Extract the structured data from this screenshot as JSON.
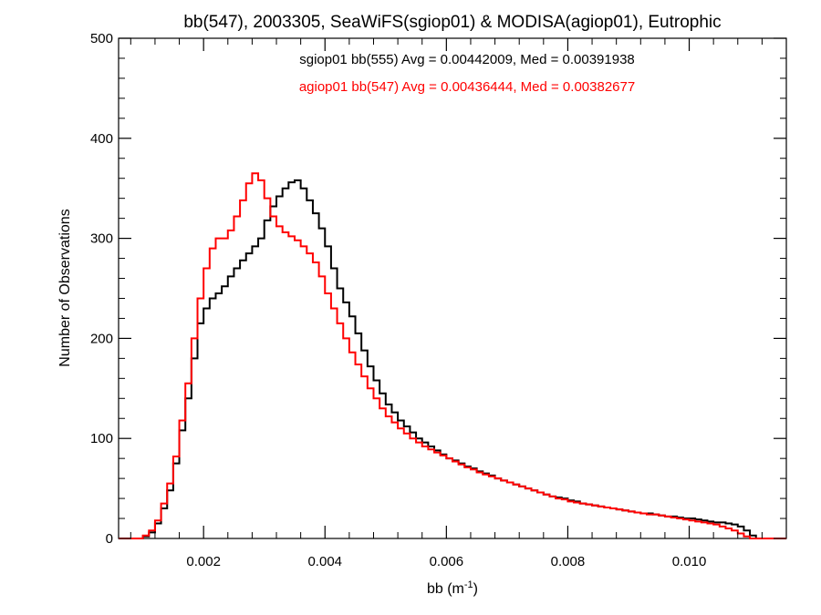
{
  "chart_data": {
    "type": "line",
    "title": "bb(547), 2003305, SeaWiFS(sgiop01) & MODISA(agiop01), Eutrophic",
    "xlabel": "bb (m",
    "xlabel_sup": "-1",
    "xlabel_close": ")",
    "ylabel": "Number of Observations",
    "xlim": [
      0.0006,
      0.0116
    ],
    "ylim": [
      0,
      500
    ],
    "x_ticks": [
      0.002,
      0.004,
      0.006,
      0.008,
      0.01
    ],
    "x_tick_labels": [
      "0.002",
      "0.004",
      "0.006",
      "0.008",
      "0.010"
    ],
    "y_ticks": [
      0,
      100,
      200,
      300,
      400,
      500
    ],
    "y_tick_labels": [
      "0",
      "100",
      "200",
      "300",
      "400",
      "500"
    ],
    "grid": false,
    "step_style": "histogram",
    "annotations": [
      {
        "text": "sgiop01 bb(555) Avg = 0.00442009, Med = 0.00391938",
        "color": "#000000"
      },
      {
        "text": "agiop01 bb(547) Avg = 0.00436444, Med = 0.00382677",
        "color": "#ff0000"
      }
    ],
    "series": [
      {
        "color": "#000000",
        "points": [
          [
            0.0006,
            0
          ],
          [
            0.0009,
            0
          ],
          [
            0.001,
            2
          ],
          [
            0.0011,
            6
          ],
          [
            0.0012,
            15
          ],
          [
            0.0013,
            30
          ],
          [
            0.0014,
            48
          ],
          [
            0.0015,
            75
          ],
          [
            0.0016,
            108
          ],
          [
            0.0017,
            140
          ],
          [
            0.0018,
            180
          ],
          [
            0.0019,
            215
          ],
          [
            0.002,
            230
          ],
          [
            0.0021,
            240
          ],
          [
            0.0022,
            245
          ],
          [
            0.0023,
            252
          ],
          [
            0.0024,
            262
          ],
          [
            0.0025,
            270
          ],
          [
            0.0026,
            278
          ],
          [
            0.0027,
            285
          ],
          [
            0.0028,
            292
          ],
          [
            0.0029,
            300
          ],
          [
            0.003,
            318
          ],
          [
            0.0031,
            332
          ],
          [
            0.0032,
            342
          ],
          [
            0.0033,
            350
          ],
          [
            0.0034,
            356
          ],
          [
            0.0035,
            358
          ],
          [
            0.0036,
            350
          ],
          [
            0.0037,
            338
          ],
          [
            0.0038,
            325
          ],
          [
            0.0039,
            310
          ],
          [
            0.004,
            292
          ],
          [
            0.0041,
            270
          ],
          [
            0.0042,
            250
          ],
          [
            0.0043,
            236
          ],
          [
            0.0044,
            222
          ],
          [
            0.0045,
            205
          ],
          [
            0.0046,
            188
          ],
          [
            0.0047,
            172
          ],
          [
            0.0048,
            158
          ],
          [
            0.0049,
            145
          ],
          [
            0.005,
            134
          ],
          [
            0.0051,
            126
          ],
          [
            0.0052,
            118
          ],
          [
            0.0053,
            112
          ],
          [
            0.0054,
            106
          ],
          [
            0.0055,
            100
          ],
          [
            0.0056,
            96
          ],
          [
            0.0057,
            92
          ],
          [
            0.0058,
            88
          ],
          [
            0.0059,
            84
          ],
          [
            0.006,
            80
          ],
          [
            0.0061,
            78
          ],
          [
            0.0062,
            75
          ],
          [
            0.0063,
            72
          ],
          [
            0.0064,
            70
          ],
          [
            0.0065,
            67
          ],
          [
            0.0066,
            65
          ],
          [
            0.0067,
            63
          ],
          [
            0.0068,
            60
          ],
          [
            0.0069,
            58
          ],
          [
            0.007,
            56
          ],
          [
            0.0071,
            54
          ],
          [
            0.0072,
            52
          ],
          [
            0.0073,
            50
          ],
          [
            0.0074,
            48
          ],
          [
            0.0075,
            46
          ],
          [
            0.0076,
            44
          ],
          [
            0.0077,
            42
          ],
          [
            0.0078,
            41
          ],
          [
            0.0079,
            40
          ],
          [
            0.008,
            38
          ],
          [
            0.0081,
            37
          ],
          [
            0.0082,
            35
          ],
          [
            0.0083,
            34
          ],
          [
            0.0084,
            33
          ],
          [
            0.0085,
            32
          ],
          [
            0.0086,
            31
          ],
          [
            0.0087,
            30
          ],
          [
            0.0088,
            29
          ],
          [
            0.0089,
            28
          ],
          [
            0.009,
            27
          ],
          [
            0.0091,
            26
          ],
          [
            0.0092,
            25
          ],
          [
            0.0093,
            25
          ],
          [
            0.0094,
            24
          ],
          [
            0.0095,
            23
          ],
          [
            0.0096,
            22
          ],
          [
            0.0097,
            22
          ],
          [
            0.0098,
            21
          ],
          [
            0.0099,
            20
          ],
          [
            0.01,
            20
          ],
          [
            0.0101,
            19
          ],
          [
            0.0102,
            18
          ],
          [
            0.0103,
            17
          ],
          [
            0.0104,
            16
          ],
          [
            0.0105,
            16
          ],
          [
            0.0106,
            15
          ],
          [
            0.0107,
            14
          ],
          [
            0.0108,
            12
          ],
          [
            0.0109,
            8
          ],
          [
            0.011,
            3
          ],
          [
            0.0111,
            0
          ],
          [
            0.0116,
            0
          ]
        ]
      },
      {
        "color": "#ff0000",
        "points": [
          [
            0.0006,
            0
          ],
          [
            0.0009,
            0
          ],
          [
            0.001,
            3
          ],
          [
            0.0011,
            8
          ],
          [
            0.0012,
            18
          ],
          [
            0.0013,
            35
          ],
          [
            0.0014,
            55
          ],
          [
            0.0015,
            82
          ],
          [
            0.0016,
            118
          ],
          [
            0.0017,
            155
          ],
          [
            0.0018,
            200
          ],
          [
            0.0019,
            240
          ],
          [
            0.002,
            270
          ],
          [
            0.0021,
            290
          ],
          [
            0.0022,
            300
          ],
          [
            0.0023,
            300
          ],
          [
            0.0024,
            308
          ],
          [
            0.0025,
            322
          ],
          [
            0.0026,
            338
          ],
          [
            0.0027,
            355
          ],
          [
            0.0028,
            365
          ],
          [
            0.0029,
            358
          ],
          [
            0.003,
            340
          ],
          [
            0.0031,
            322
          ],
          [
            0.0032,
            312
          ],
          [
            0.0033,
            306
          ],
          [
            0.0034,
            302
          ],
          [
            0.0035,
            298
          ],
          [
            0.0036,
            292
          ],
          [
            0.0037,
            285
          ],
          [
            0.0038,
            276
          ],
          [
            0.0039,
            262
          ],
          [
            0.004,
            245
          ],
          [
            0.0041,
            230
          ],
          [
            0.0042,
            215
          ],
          [
            0.0043,
            200
          ],
          [
            0.0044,
            186
          ],
          [
            0.0045,
            174
          ],
          [
            0.0046,
            162
          ],
          [
            0.0047,
            150
          ],
          [
            0.0048,
            140
          ],
          [
            0.0049,
            130
          ],
          [
            0.005,
            122
          ],
          [
            0.0051,
            116
          ],
          [
            0.0052,
            110
          ],
          [
            0.0053,
            105
          ],
          [
            0.0054,
            100
          ],
          [
            0.0055,
            96
          ],
          [
            0.0056,
            92
          ],
          [
            0.0057,
            89
          ],
          [
            0.0058,
            86
          ],
          [
            0.0059,
            83
          ],
          [
            0.006,
            80
          ],
          [
            0.0061,
            77
          ],
          [
            0.0062,
            74
          ],
          [
            0.0063,
            71
          ],
          [
            0.0064,
            69
          ],
          [
            0.0065,
            66
          ],
          [
            0.0066,
            64
          ],
          [
            0.0067,
            62
          ],
          [
            0.0068,
            60
          ],
          [
            0.0069,
            58
          ],
          [
            0.007,
            56
          ],
          [
            0.0071,
            54
          ],
          [
            0.0072,
            52
          ],
          [
            0.0073,
            50
          ],
          [
            0.0074,
            48
          ],
          [
            0.0075,
            46
          ],
          [
            0.0076,
            44
          ],
          [
            0.0077,
            42
          ],
          [
            0.0078,
            40
          ],
          [
            0.0079,
            39
          ],
          [
            0.008,
            37
          ],
          [
            0.0081,
            36
          ],
          [
            0.0082,
            35
          ],
          [
            0.0083,
            34
          ],
          [
            0.0084,
            33
          ],
          [
            0.0085,
            32
          ],
          [
            0.0086,
            31
          ],
          [
            0.0087,
            30
          ],
          [
            0.0088,
            29
          ],
          [
            0.0089,
            28
          ],
          [
            0.009,
            27
          ],
          [
            0.0091,
            26
          ],
          [
            0.0092,
            25
          ],
          [
            0.0093,
            24
          ],
          [
            0.0094,
            24
          ],
          [
            0.0095,
            23
          ],
          [
            0.0096,
            22
          ],
          [
            0.0097,
            21
          ],
          [
            0.0098,
            20
          ],
          [
            0.0099,
            19
          ],
          [
            0.01,
            18
          ],
          [
            0.0101,
            17
          ],
          [
            0.0102,
            16
          ],
          [
            0.0103,
            15
          ],
          [
            0.0104,
            14
          ],
          [
            0.0105,
            12
          ],
          [
            0.0106,
            10
          ],
          [
            0.0107,
            8
          ],
          [
            0.0108,
            5
          ],
          [
            0.0109,
            2
          ],
          [
            0.011,
            0
          ],
          [
            0.0116,
            0
          ]
        ]
      }
    ]
  }
}
